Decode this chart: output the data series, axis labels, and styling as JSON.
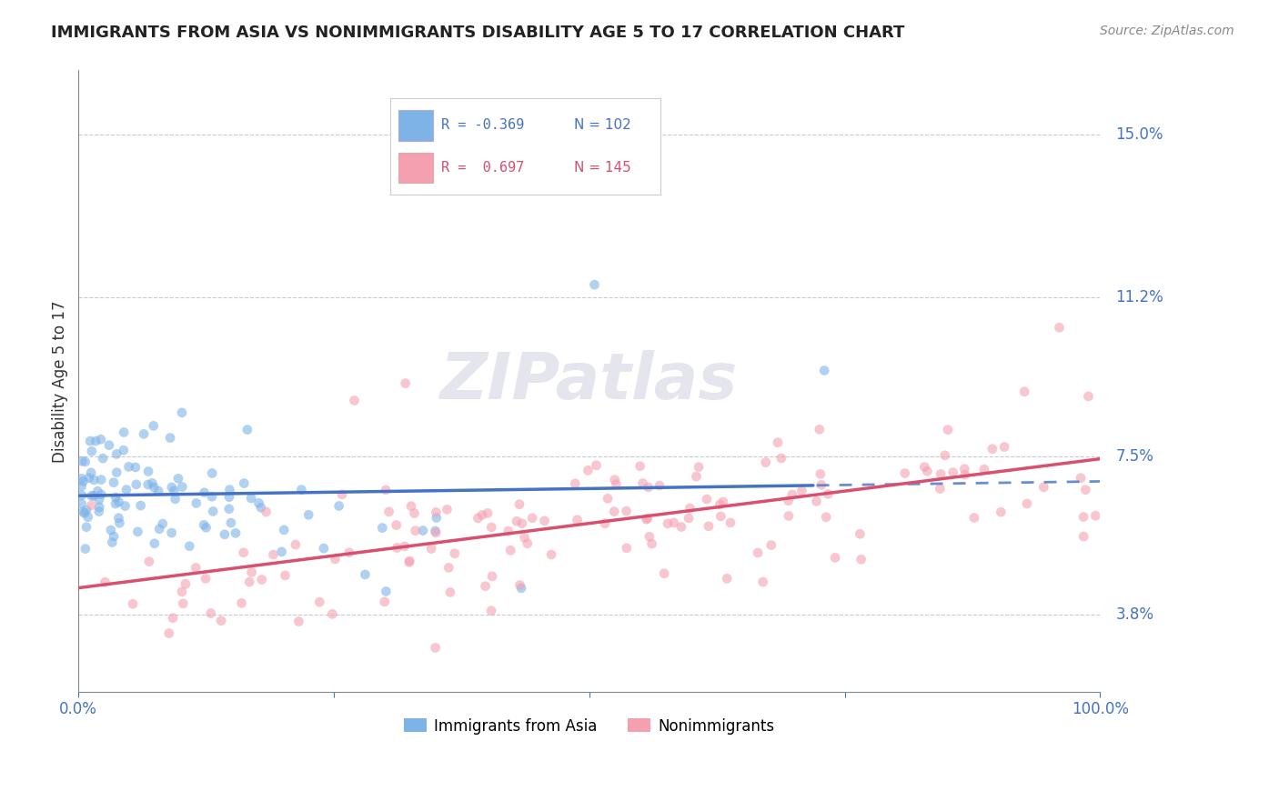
{
  "title": "IMMIGRANTS FROM ASIA VS NONIMMIGRANTS DISABILITY AGE 5 TO 17 CORRELATION CHART",
  "source": "Source: ZipAtlas.com",
  "ylabel": "Disability Age 5 to 17",
  "yticks": [
    3.8,
    7.5,
    11.2,
    15.0
  ],
  "ytick_labels": [
    "3.8%",
    "7.5%",
    "11.2%",
    "15.0%"
  ],
  "xmin": 0.0,
  "xmax": 100.0,
  "ymin": 2.0,
  "ymax": 16.5,
  "blue_color": "#7EB3E8",
  "pink_color": "#F4A0B0",
  "blue_line_color": "#4472C4",
  "pink_line_color": "#D94F6E",
  "title_color": "#222222",
  "axis_label_color": "#4472C4",
  "background_color": "#FFFFFF",
  "watermark_color": "#CCCCDD",
  "legend_blue_r": "R = -0.369",
  "legend_blue_n": "N = 102",
  "legend_pink_r": "R =  0.697",
  "legend_pink_n": "N = 145",
  "legend_label_blue": "Immigrants from Asia",
  "legend_label_pink": "Nonimmigrants"
}
